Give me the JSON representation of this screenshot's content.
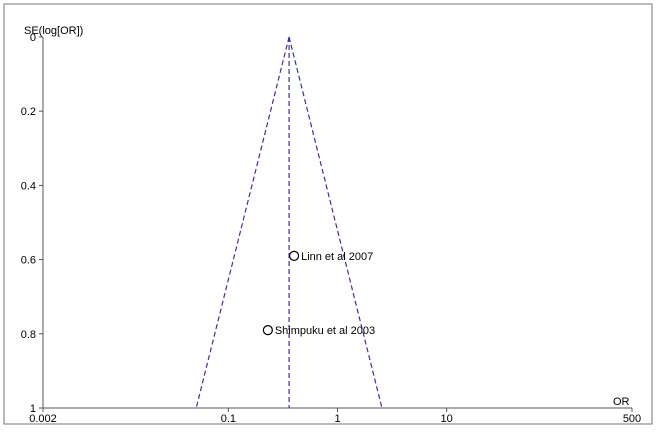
{
  "chart_data": {
    "type": "scatter",
    "ylabel": "SE(log[OR])",
    "xlabel": "OR",
    "x_scale": "log",
    "xlim": [
      0.002,
      500
    ],
    "ylim": [
      0,
      1
    ],
    "y_inverted": true,
    "x_ticks": [
      {
        "value": 0.002,
        "label": "0.002"
      },
      {
        "value": 0.1,
        "label": "0.1"
      },
      {
        "value": 1,
        "label": "1"
      },
      {
        "value": 10,
        "label": "10"
      },
      {
        "value": 500,
        "label": "500"
      }
    ],
    "y_ticks": [
      {
        "value": 0,
        "label": "0"
      },
      {
        "value": 0.2,
        "label": "0.2"
      },
      {
        "value": 0.4,
        "label": "0.4"
      },
      {
        "value": 0.6,
        "label": "0.6"
      },
      {
        "value": 0.8,
        "label": "0.8"
      },
      {
        "value": 1,
        "label": "1"
      }
    ],
    "pooled_or": 0.36,
    "funnel_se_max": 1,
    "points": [
      {
        "label": "Linn et al 2007",
        "or": 0.4,
        "se": 0.59
      },
      {
        "label": "Shimpuku et al 2003",
        "or": 0.23,
        "se": 0.79
      }
    ],
    "colors": {
      "funnel": "#3333aa",
      "axis": "#555555",
      "points": "#000000"
    },
    "grid": false,
    "legend": "none"
  }
}
